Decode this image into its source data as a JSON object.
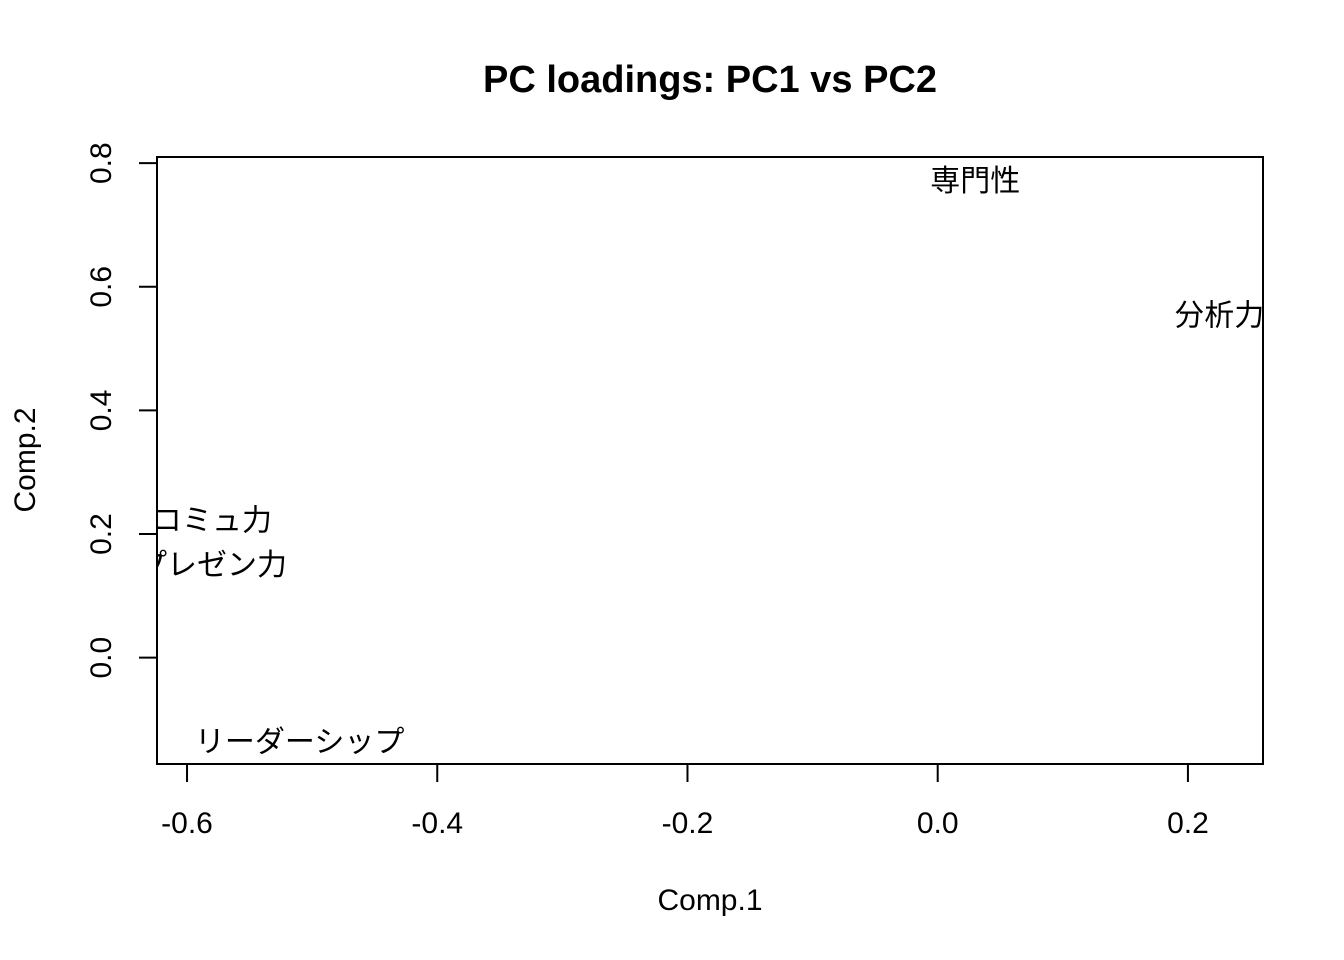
{
  "chart_data": {
    "type": "scatter",
    "title": "PC loadings: PC1 vs PC2",
    "xlabel": "Comp.1",
    "ylabel": "Comp.2",
    "xlim": [
      -0.624,
      0.26
    ],
    "ylim": [
      -0.172,
      0.81
    ],
    "x_ticks": [
      -0.6,
      -0.4,
      -0.2,
      0.0,
      0.2
    ],
    "x_tick_labels": [
      "-0.6",
      "-0.4",
      "-0.2",
      "0.0",
      "0.2"
    ],
    "y_ticks": [
      0.0,
      0.2,
      0.4,
      0.6,
      0.8
    ],
    "y_tick_labels": [
      "0.0",
      "0.2",
      "0.4",
      "0.6",
      "0.8"
    ],
    "grid": false,
    "marker": "text-label",
    "points": [
      {
        "label": "専門性",
        "x": 0.03,
        "y": 0.77
      },
      {
        "label": "分析力",
        "x": 0.225,
        "y": 0.553
      },
      {
        "label": "コミュ力",
        "x": -0.58,
        "y": 0.221
      },
      {
        "label": "プレゼン力",
        "x": -0.58,
        "y": 0.149
      },
      {
        "label": "リーダーシップ",
        "x": -0.51,
        "y": -0.137
      }
    ]
  }
}
